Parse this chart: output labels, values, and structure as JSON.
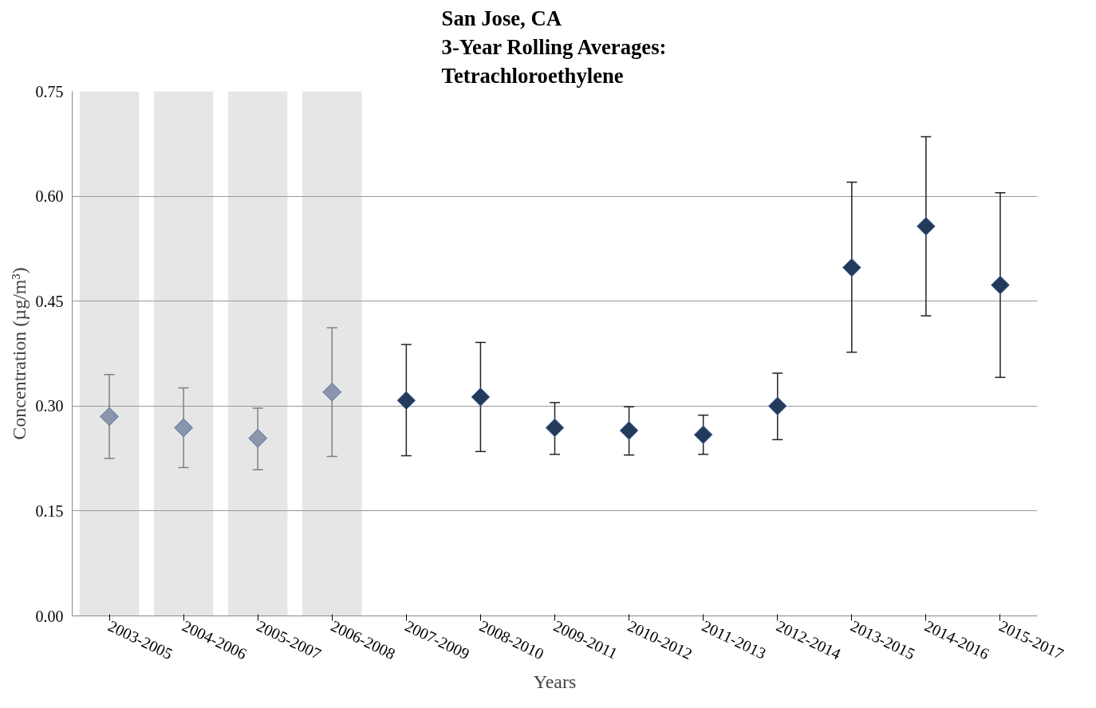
{
  "chart_data": {
    "type": "scatter",
    "title": "San Jose, CA\n3-Year Rolling Averages:\nTetrachloroethylene",
    "xlabel": "Years",
    "ylabel": "Concentration (µg/m³)",
    "categories": [
      "2003-2005",
      "2004-2006",
      "2005-2007",
      "2006-2008",
      "2007-2009",
      "2008-2010",
      "2009-2011",
      "2010-2012",
      "2011-2013",
      "2012-2014",
      "2013-2015",
      "2014-2016",
      "2015-2017"
    ],
    "series": [
      {
        "color": "#8a96aa",
        "values": [
          0.285,
          0.269,
          0.254,
          0.32,
          null,
          null,
          null,
          null,
          null,
          null,
          null,
          null,
          null
        ],
        "errors": [
          [
            0.225,
            0.345
          ],
          [
            0.212,
            0.326
          ],
          [
            0.209,
            0.297
          ],
          [
            0.228,
            0.412
          ],
          null,
          null,
          null,
          null,
          null,
          null,
          null,
          null,
          null
        ]
      },
      {
        "color": "#243a5a",
        "values": [
          null,
          null,
          null,
          null,
          0.308,
          0.313,
          0.269,
          0.265,
          0.259,
          0.3,
          0.498,
          0.557,
          0.473
        ],
        "errors": [
          null,
          null,
          null,
          null,
          [
            0.229,
            0.388
          ],
          [
            0.235,
            0.391
          ],
          [
            0.231,
            0.305
          ],
          [
            0.23,
            0.299
          ],
          [
            0.231,
            0.287
          ],
          [
            0.252,
            0.347
          ],
          [
            0.377,
            0.62
          ],
          [
            0.429,
            0.685
          ],
          [
            0.341,
            0.605
          ]
        ]
      }
    ],
    "ylim": [
      0,
      0.75
    ],
    "yticks": [
      {
        "value": 0,
        "label": "0.00"
      },
      {
        "value": 0.15,
        "label": "0.15"
      },
      {
        "value": 0.3,
        "label": "0.30"
      },
      {
        "value": 0.45,
        "label": "0.45"
      },
      {
        "value": 0.6,
        "label": "0.60"
      },
      {
        "value": 0.75,
        "label": "0.75"
      }
    ],
    "bands": [
      {
        "axis": "x",
        "from": "2003-2005",
        "to": "2003-2005",
        "color": "#e6e6e6"
      },
      {
        "axis": "x",
        "from": "2004-2006",
        "to": "2004-2006",
        "color": "#e6e6e6"
      },
      {
        "axis": "x",
        "from": "2005-2007",
        "to": "2005-2007",
        "color": "#e6e6e6"
      },
      {
        "axis": "x",
        "from": "2006-2008",
        "to": "2006-2008",
        "color": "#e6e6e6"
      }
    ],
    "grid": "y",
    "marker": "diamond"
  }
}
